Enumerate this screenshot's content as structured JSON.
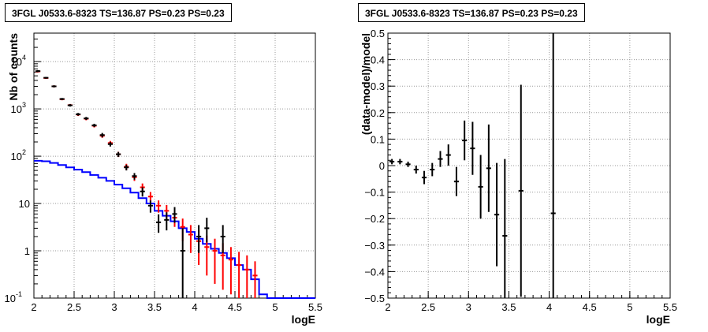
{
  "chart_data": [
    {
      "type": "line",
      "title": "3FGL J0533.6-8323 TS=136.87 PS=0.23 PS=0.23",
      "xlabel": "logE",
      "ylabel": "Nb of counts",
      "xlim": [
        2,
        5.5
      ],
      "ylim": [
        0.1,
        40000
      ],
      "y_scale": "log",
      "grid": true,
      "x_ticks": [
        "2",
        "2.5",
        "3",
        "3.5",
        "4",
        "4.5",
        "5",
        "5.5"
      ],
      "y_ticks": [
        {
          "value": 0.1,
          "base": "10",
          "exp": "-1"
        },
        {
          "value": 1,
          "base": "1",
          "exp": ""
        },
        {
          "value": 10,
          "base": "10",
          "exp": ""
        },
        {
          "value": 100,
          "base": "10",
          "exp": "2"
        },
        {
          "value": 1000,
          "base": "10",
          "exp": "3"
        },
        {
          "value": 10000,
          "base": "10",
          "exp": "4"
        }
      ],
      "series": [
        {
          "color": "#0000ff",
          "style": "histogram",
          "bin_edges": [
            2.0,
            2.1,
            2.2,
            2.3,
            2.4,
            2.5,
            2.6,
            2.7,
            2.8,
            2.9,
            3.0,
            3.1,
            3.2,
            3.3,
            3.4,
            3.5,
            3.6,
            3.7,
            3.8,
            3.9,
            4.0,
            4.1,
            4.2,
            4.3,
            4.4,
            4.5,
            4.6,
            4.7,
            4.8,
            4.9,
            5.0,
            5.1,
            5.2,
            5.3,
            5.4,
            5.5
          ],
          "values": [
            80,
            78,
            72,
            65,
            58,
            52,
            46,
            40,
            35,
            30,
            25,
            21,
            17,
            13,
            10,
            7,
            5.5,
            4.2,
            3,
            2.5,
            1.8,
            1.4,
            1.1,
            0.9,
            0.7,
            0.5,
            0.4,
            0.25,
            0.12,
            0.1,
            0.1,
            0.1,
            0.1,
            0.1,
            0.1
          ]
        },
        {
          "color": "#ff0000",
          "style": "errorbar",
          "x": [
            2.05,
            2.15,
            2.25,
            2.35,
            2.45,
            2.55,
            2.65,
            2.75,
            2.85,
            2.95,
            3.05,
            3.15,
            3.25,
            3.35,
            3.45,
            3.55,
            3.65,
            3.75,
            3.85,
            3.95,
            4.05,
            4.15,
            4.25,
            4.35,
            4.45,
            4.55,
            4.65,
            4.75
          ],
          "y": [
            6200,
            4500,
            3000,
            1600,
            1200,
            760,
            620,
            440,
            270,
            190,
            110,
            60,
            36,
            22,
            14,
            9,
            7,
            5,
            3.2,
            2.2,
            1.6,
            1.2,
            1.0,
            0.8,
            0.65,
            0.5,
            0.4,
            0.3
          ],
          "y_low": [
            5900,
            4300,
            2850,
            1520,
            1130,
            710,
            575,
            405,
            245,
            170,
            96,
            51,
            30,
            17.5,
            10.5,
            6.4,
            4.7,
            3.2,
            1.6,
            0.9,
            0.5,
            0.3,
            0.2,
            0.15,
            0.12,
            0.1,
            0.1,
            0.1
          ],
          "y_high": [
            6500,
            4700,
            3150,
            1680,
            1270,
            810,
            665,
            475,
            295,
            210,
            124,
            69,
            42,
            26.5,
            17.5,
            11.6,
            9.3,
            6.8,
            4.8,
            3.5,
            2.7,
            2.1,
            1.8,
            1.45,
            1.2,
            0.95,
            0.8,
            0.6
          ]
        },
        {
          "color": "#000000",
          "style": "errorbar",
          "x": [
            2.05,
            2.15,
            2.25,
            2.35,
            2.45,
            2.55,
            2.65,
            2.75,
            2.85,
            2.95,
            3.05,
            3.15,
            3.25,
            3.35,
            3.45,
            3.55,
            3.65,
            3.75,
            3.85,
            4.05,
            4.15,
            4.35
          ],
          "y": [
            6300,
            4550,
            3000,
            1620,
            1190,
            770,
            630,
            450,
            280,
            180,
            110,
            58,
            38,
            18,
            9,
            4,
            4.5,
            6,
            1,
            2,
            3,
            2
          ],
          "y_low": [
            6000,
            4350,
            2850,
            1540,
            1120,
            720,
            585,
            415,
            250,
            160,
            97,
            50,
            32,
            14,
            6.4,
            2.4,
            2.7,
            3.9,
            0.1,
            0.9,
            1.5,
            0.9
          ],
          "y_high": [
            6600,
            4750,
            3150,
            1700,
            1260,
            820,
            675,
            485,
            310,
            200,
            123,
            66,
            44,
            22,
            11.6,
            5.9,
            6.5,
            8.4,
            3,
            3.5,
            5,
            3.5
          ]
        }
      ]
    },
    {
      "type": "scatter",
      "title": "3FGL J0533.6-8323 TS=136.87 PS=0.23 PS=0.23",
      "xlabel": "logE",
      "ylabel": "(data-model)/model",
      "xlim": [
        2,
        5.5
      ],
      "ylim": [
        -0.5,
        0.5
      ],
      "grid": true,
      "x_ticks": [
        "2",
        "2.5",
        "3",
        "3.5",
        "4",
        "4.5",
        "5",
        "5.5"
      ],
      "y_ticks": [
        "−0.5",
        "−0.4",
        "−0.3",
        "−0.2",
        "−0.1",
        "0",
        "0.1",
        "0.2",
        "0.3",
        "0.4",
        "0.5"
      ],
      "series": [
        {
          "color": "#000000",
          "style": "errorbar",
          "x": [
            2.05,
            2.15,
            2.25,
            2.35,
            2.45,
            2.55,
            2.65,
            2.75,
            2.85,
            2.95,
            3.05,
            3.15,
            3.25,
            3.35,
            3.45,
            3.65,
            4.05
          ],
          "y": [
            0.015,
            0.015,
            0.005,
            -0.015,
            -0.045,
            -0.015,
            0.025,
            0.04,
            -0.06,
            0.095,
            0.065,
            -0.08,
            -0.01,
            -0.185,
            -0.265,
            -0.095,
            -0.18
          ],
          "y_err": [
            0.01,
            0.01,
            0.01,
            0.015,
            0.025,
            0.025,
            0.03,
            0.04,
            0.055,
            0.075,
            0.1,
            0.12,
            0.165,
            0.195,
            0.29,
            0.4,
            0.8
          ]
        }
      ]
    }
  ]
}
